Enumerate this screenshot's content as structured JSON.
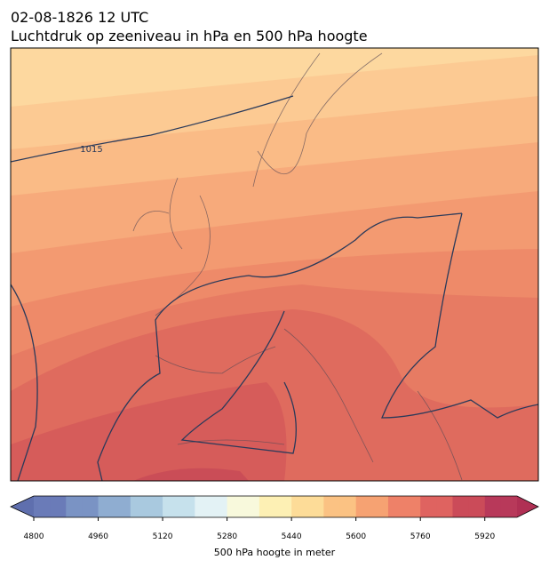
{
  "header": {
    "date": "02-08-1826 12 UTC",
    "title": "Luchtdruk op zeeniveau in hPa en 500 hPa hoogte"
  },
  "map": {
    "contour_labels": [
      "1015"
    ]
  },
  "colorbar": {
    "lim": [
      4800,
      6000
    ],
    "ticks": [
      4800,
      4960,
      5120,
      5280,
      5440,
      5600,
      5760,
      5920
    ],
    "label": "500 hPa hoogte in meter"
  }
}
